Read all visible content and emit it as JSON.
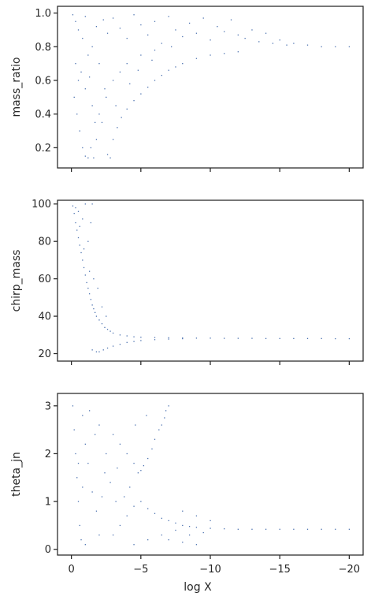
{
  "chart_data": [
    {
      "type": "scatter",
      "ylabel": "mass_ratio",
      "xlim": [
        1,
        -21
      ],
      "ylim": [
        0.08,
        1.04
      ],
      "yticks": [
        0.2,
        0.4,
        0.6,
        0.8,
        1.0
      ],
      "ytick_labels": [
        "0.2",
        "0.4",
        "0.6",
        "0.8",
        "1.0"
      ],
      "xticks": [
        0,
        -5,
        -10,
        -15,
        -20
      ],
      "show_xtick_labels": false,
      "point_color": "#4c72b0",
      "series": [
        {
          "name": "",
          "points": [
            [
              -0.1,
              0.99
            ],
            [
              -0.3,
              0.95
            ],
            [
              -0.5,
              0.9
            ],
            [
              -0.8,
              0.85
            ],
            [
              -1.0,
              0.98
            ],
            [
              -1.2,
              0.75
            ],
            [
              -1.5,
              0.8
            ],
            [
              -1.8,
              0.92
            ],
            [
              -2.0,
              0.7
            ],
            [
              -2.3,
              0.96
            ],
            [
              -2.6,
              0.88
            ],
            [
              -3.0,
              0.97
            ],
            [
              -3.5,
              0.91
            ],
            [
              -4.0,
              0.85
            ],
            [
              -4.5,
              0.99
            ],
            [
              -5.0,
              0.93
            ],
            [
              -5.5,
              0.87
            ],
            [
              -6.0,
              0.95
            ],
            [
              -6.5,
              0.82
            ],
            [
              -7.0,
              0.98
            ],
            [
              -7.5,
              0.9
            ],
            [
              -8.0,
              0.86
            ],
            [
              -8.5,
              0.94
            ],
            [
              -9.0,
              0.88
            ],
            [
              -9.5,
              0.97
            ],
            [
              -10.0,
              0.84
            ],
            [
              -10.5,
              0.92
            ],
            [
              -11.0,
              0.89
            ],
            [
              -11.5,
              0.96
            ],
            [
              -12.0,
              0.87
            ],
            [
              -12.5,
              0.85
            ],
            [
              -13.0,
              0.9
            ],
            [
              -13.5,
              0.83
            ],
            [
              -14.0,
              0.88
            ],
            [
              -14.5,
              0.82
            ],
            [
              -15.0,
              0.84
            ],
            [
              -15.5,
              0.81
            ],
            [
              -16.0,
              0.82
            ],
            [
              -17.0,
              0.81
            ],
            [
              -18.0,
              0.8
            ],
            [
              -19.0,
              0.8
            ],
            [
              -20.0,
              0.8
            ],
            [
              -0.2,
              0.5
            ],
            [
              -0.4,
              0.4
            ],
            [
              -0.6,
              0.3
            ],
            [
              -0.8,
              0.2
            ],
            [
              -1.0,
              0.15
            ],
            [
              -1.2,
              0.14
            ],
            [
              -1.4,
              0.2
            ],
            [
              -1.6,
              0.14
            ],
            [
              -1.8,
              0.25
            ],
            [
              -2.2,
              0.35
            ],
            [
              -2.6,
              0.16
            ],
            [
              -2.8,
              0.14
            ],
            [
              -3.0,
              0.25
            ],
            [
              -3.3,
              0.32
            ],
            [
              -3.6,
              0.38
            ],
            [
              -4.0,
              0.43
            ],
            [
              -4.5,
              0.48
            ],
            [
              -5.0,
              0.52
            ],
            [
              -5.5,
              0.56
            ],
            [
              -6.0,
              0.6
            ],
            [
              -6.5,
              0.63
            ],
            [
              -7.0,
              0.66
            ],
            [
              -7.5,
              0.68
            ],
            [
              -8.0,
              0.7
            ],
            [
              -9.0,
              0.73
            ],
            [
              -10.0,
              0.75
            ],
            [
              -11.0,
              0.76
            ],
            [
              -12.0,
              0.77
            ],
            [
              -0.5,
              0.6
            ],
            [
              -1.0,
              0.55
            ],
            [
              -1.5,
              0.45
            ],
            [
              -2.0,
              0.4
            ],
            [
              -2.5,
              0.5
            ],
            [
              -3.0,
              0.6
            ],
            [
              -3.5,
              0.65
            ],
            [
              -4.0,
              0.7
            ],
            [
              -5.0,
              0.75
            ],
            [
              -6.0,
              0.78
            ],
            [
              -0.3,
              0.7
            ],
            [
              -0.7,
              0.65
            ],
            [
              -1.3,
              0.62
            ],
            [
              -1.7,
              0.35
            ],
            [
              -2.4,
              0.55
            ],
            [
              -3.2,
              0.45
            ],
            [
              -4.2,
              0.58
            ],
            [
              -4.8,
              0.66
            ],
            [
              -5.8,
              0.72
            ],
            [
              -7.2,
              0.8
            ]
          ]
        }
      ]
    },
    {
      "type": "scatter",
      "ylabel": "chirp_mass",
      "xlim": [
        1,
        -21
      ],
      "ylim": [
        16,
        102
      ],
      "yticks": [
        20,
        40,
        60,
        80,
        100
      ],
      "ytick_labels": [
        "20",
        "40",
        "60",
        "80",
        "100"
      ],
      "xticks": [
        0,
        -5,
        -10,
        -15,
        -20
      ],
      "show_xtick_labels": false,
      "point_color": "#4c72b0",
      "series": [
        {
          "name": "",
          "points": [
            [
              -0.1,
              99
            ],
            [
              -0.2,
              95
            ],
            [
              -0.3,
              90
            ],
            [
              -0.4,
              86
            ],
            [
              -0.5,
              82
            ],
            [
              -0.6,
              78
            ],
            [
              -0.7,
              74
            ],
            [
              -0.8,
              70
            ],
            [
              -0.9,
              66
            ],
            [
              -1.0,
              62
            ],
            [
              -1.1,
              58
            ],
            [
              -1.2,
              55
            ],
            [
              -1.3,
              52
            ],
            [
              -1.4,
              49
            ],
            [
              -1.5,
              46
            ],
            [
              -1.6,
              44
            ],
            [
              -1.7,
              42
            ],
            [
              -1.8,
              40
            ],
            [
              -2.0,
              38
            ],
            [
              -2.2,
              36
            ],
            [
              -2.4,
              34
            ],
            [
              -2.6,
              33
            ],
            [
              -2.8,
              32
            ],
            [
              -3.0,
              31
            ],
            [
              -3.5,
              30
            ],
            [
              -4.0,
              29.5
            ],
            [
              -4.5,
              29
            ],
            [
              -5.0,
              28.8
            ],
            [
              -6.0,
              28.6
            ],
            [
              -7.0,
              28.5
            ],
            [
              -8.0,
              28.4
            ],
            [
              -9.0,
              28.3
            ],
            [
              -10.0,
              28.3
            ],
            [
              -11.0,
              28.2
            ],
            [
              -12.0,
              28.2
            ],
            [
              -13.0,
              28.2
            ],
            [
              -14.0,
              28.1
            ],
            [
              -15.0,
              28.1
            ],
            [
              -16.0,
              28.1
            ],
            [
              -17.0,
              28.1
            ],
            [
              -18.0,
              28.1
            ],
            [
              -19.0,
              28.0
            ],
            [
              -20.0,
              28.0
            ],
            [
              -1.5,
              22
            ],
            [
              -1.8,
              21
            ],
            [
              -2.0,
              21
            ],
            [
              -2.3,
              22
            ],
            [
              -2.6,
              23
            ],
            [
              -3.0,
              24
            ],
            [
              -3.5,
              25
            ],
            [
              -4.0,
              26
            ],
            [
              -4.5,
              26.5
            ],
            [
              -5.0,
              27
            ],
            [
              -6.0,
              27.5
            ],
            [
              -7.0,
              27.8
            ],
            [
              -8.0,
              28
            ],
            [
              -1.5,
              100
            ],
            [
              -1.4,
              90
            ],
            [
              -1.2,
              80
            ],
            [
              -1.0,
              100
            ],
            [
              -0.8,
              92
            ],
            [
              -0.5,
              96
            ],
            [
              -1.6,
              60
            ],
            [
              -1.9,
              55
            ],
            [
              -2.2,
              45
            ],
            [
              -2.5,
              40
            ],
            [
              -0.3,
              98
            ],
            [
              -0.6,
              88
            ],
            [
              -0.9,
              76
            ],
            [
              -1.3,
              64
            ]
          ]
        }
      ]
    },
    {
      "type": "scatter",
      "ylabel": "theta_jn",
      "xlabel": "log X",
      "xlim": [
        1,
        -21
      ],
      "ylim": [
        -0.12,
        3.26
      ],
      "yticks": [
        0,
        1,
        2,
        3
      ],
      "ytick_labels": [
        "0",
        "1",
        "2",
        "3"
      ],
      "xticks": [
        0,
        -5,
        -10,
        -15,
        -20
      ],
      "xtick_labels": [
        "0",
        "−5",
        "−10",
        "−15",
        "−20"
      ],
      "show_xtick_labels": true,
      "point_color": "#4c72b0",
      "series": [
        {
          "name": "",
          "points": [
            [
              -0.1,
              3.0
            ],
            [
              -0.2,
              2.5
            ],
            [
              -0.3,
              2.0
            ],
            [
              -0.4,
              1.5
            ],
            [
              -0.5,
              1.0
            ],
            [
              -0.6,
              0.5
            ],
            [
              -0.7,
              0.2
            ],
            [
              -0.8,
              2.8
            ],
            [
              -1.0,
              2.2
            ],
            [
              -1.2,
              1.8
            ],
            [
              -1.5,
              1.2
            ],
            [
              -1.8,
              0.8
            ],
            [
              -2.0,
              2.6
            ],
            [
              -2.5,
              2.0
            ],
            [
              -3.0,
              2.4
            ],
            [
              -3.5,
              2.2
            ],
            [
              -4.0,
              2.0
            ],
            [
              -4.5,
              1.8
            ],
            [
              -5.0,
              1.65
            ],
            [
              -5.5,
              1.9
            ],
            [
              -6.0,
              2.3
            ],
            [
              -6.5,
              2.6
            ],
            [
              -6.8,
              2.9
            ],
            [
              -7.0,
              3.0
            ],
            [
              -6.7,
              2.75
            ],
            [
              -6.3,
              2.5
            ],
            [
              -5.8,
              2.1
            ],
            [
              -5.2,
              1.75
            ],
            [
              -4.8,
              1.6
            ],
            [
              -4.2,
              1.3
            ],
            [
              -3.8,
              1.1
            ],
            [
              -3.2,
              1.0
            ],
            [
              -2.8,
              1.4
            ],
            [
              -2.4,
              1.6
            ],
            [
              -3.0,
              0.3
            ],
            [
              -3.5,
              0.5
            ],
            [
              -4.0,
              0.7
            ],
            [
              -4.5,
              0.9
            ],
            [
              -5.0,
              1.0
            ],
            [
              -5.5,
              0.85
            ],
            [
              -6.0,
              0.75
            ],
            [
              -6.5,
              0.65
            ],
            [
              -7.0,
              0.6
            ],
            [
              -7.5,
              0.55
            ],
            [
              -8.0,
              0.5
            ],
            [
              -8.5,
              0.48
            ],
            [
              -9.0,
              0.46
            ],
            [
              -10.0,
              0.44
            ],
            [
              -11.0,
              0.43
            ],
            [
              -12.0,
              0.42
            ],
            [
              -13.0,
              0.42
            ],
            [
              -14.0,
              0.42
            ],
            [
              -15.0,
              0.42
            ],
            [
              -16.0,
              0.42
            ],
            [
              -17.0,
              0.42
            ],
            [
              -18.0,
              0.42
            ],
            [
              -19.0,
              0.42
            ],
            [
              -20.0,
              0.42
            ],
            [
              -7.0,
              0.2
            ],
            [
              -8.0,
              0.15
            ],
            [
              -9.0,
              0.1
            ],
            [
              -8.5,
              0.3
            ],
            [
              -9.5,
              0.35
            ],
            [
              -10.0,
              0.6
            ],
            [
              -9.0,
              0.7
            ],
            [
              -8.0,
              0.8
            ],
            [
              -7.5,
              0.4
            ],
            [
              -6.5,
              0.3
            ],
            [
              -5.5,
              0.2
            ],
            [
              -4.5,
              0.1
            ],
            [
              -1.0,
              0.1
            ],
            [
              -2.0,
              0.3
            ],
            [
              -0.5,
              1.8
            ],
            [
              -0.8,
              1.3
            ],
            [
              -1.3,
              2.9
            ],
            [
              -1.7,
              2.4
            ],
            [
              -2.2,
              1.1
            ],
            [
              -3.3,
              1.7
            ],
            [
              -4.6,
              2.6
            ],
            [
              -5.4,
              2.8
            ]
          ]
        }
      ]
    }
  ]
}
